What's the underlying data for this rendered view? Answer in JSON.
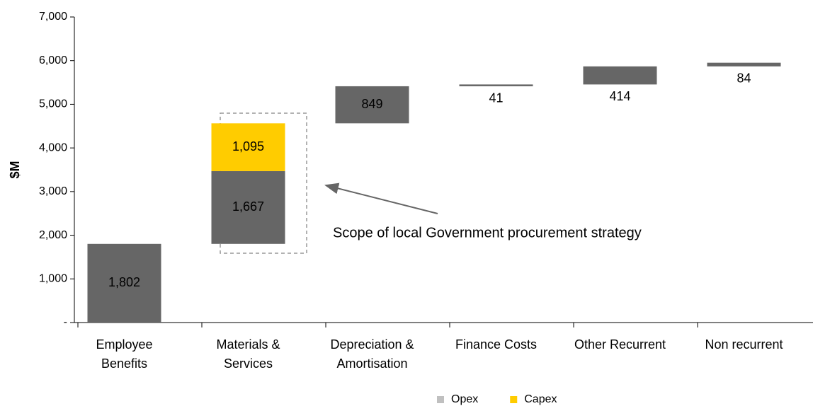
{
  "chart_data": {
    "type": "waterfall",
    "y_label": "$M",
    "categories": [
      [
        "Employee",
        "Benefits"
      ],
      [
        "Materials &",
        "Services"
      ],
      [
        "Depreciation &",
        "Amortisation"
      ],
      [
        "Finance Costs"
      ],
      [
        "Other Recurrent"
      ],
      [
        "Non recurrent"
      ]
    ],
    "series": [
      {
        "name": "Opex",
        "color": "#666666",
        "legend_color": "#c0c0c0",
        "values": [
          1802,
          1667,
          849,
          41,
          414,
          84
        ],
        "value_labels": [
          "1,802",
          "1,667",
          "849",
          "41",
          "414",
          "84"
        ]
      },
      {
        "name": "Capex",
        "color": "#ffcc00",
        "legend_color": "#ffcc00",
        "values": [
          null,
          1095,
          null,
          null,
          null,
          null
        ],
        "value_labels": [
          null,
          "1,095",
          null,
          null,
          null,
          null
        ]
      }
    ],
    "ylim": [
      0,
      7000
    ],
    "yticks": [
      {
        "value": 0,
        "label": "-"
      },
      {
        "value": 1000,
        "label": "1,000"
      },
      {
        "value": 2000,
        "label": "2,000"
      },
      {
        "value": 3000,
        "label": "3,000"
      },
      {
        "value": 4000,
        "label": "4,000"
      },
      {
        "value": 5000,
        "label": "5,000"
      },
      {
        "value": 6000,
        "label": "6,000"
      },
      {
        "value": 7000,
        "label": "7,000"
      }
    ],
    "annotation": "Scope of local Government procurement strategy"
  }
}
